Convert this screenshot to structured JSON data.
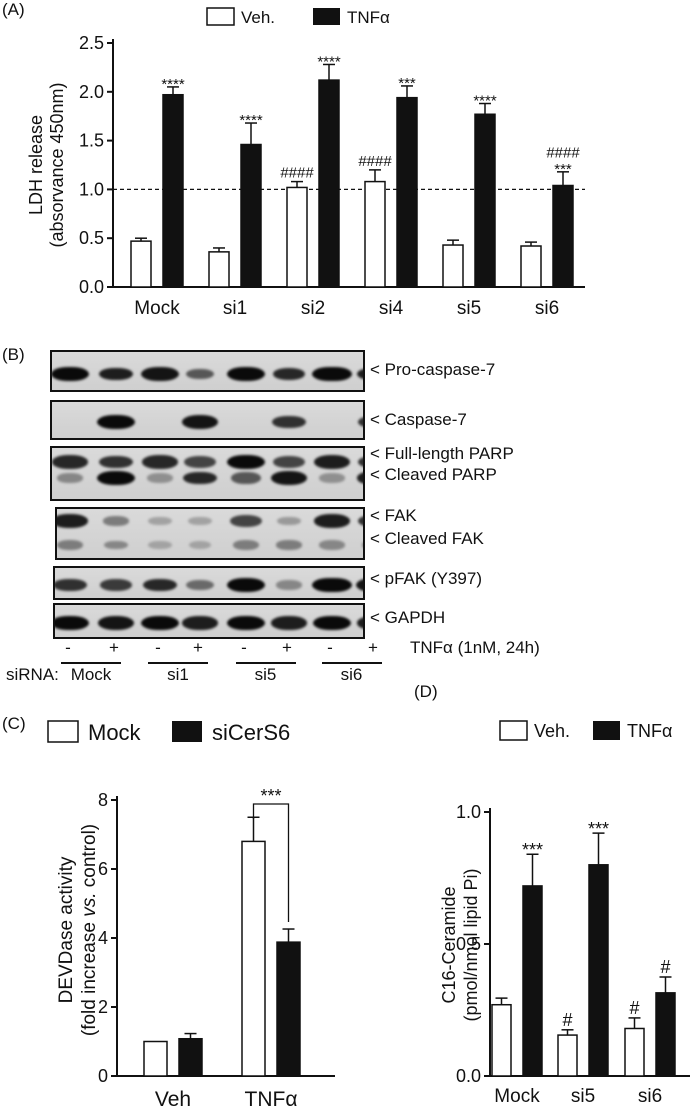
{
  "panel_a": {
    "letter": "(A)",
    "legend": [
      "Veh.",
      "TNFα"
    ],
    "ylabel_lines": [
      "LDH release",
      "(absorvance 450nm)"
    ],
    "threshold_line": 1.0
  },
  "panel_b": {
    "letter": "(B)",
    "band_labels": [
      "< Pro-caspase-7",
      "< Caspase-7",
      "< Full-length PARP",
      "< Cleaved PARP",
      "< FAK",
      "< Cleaved FAK",
      "< pFAK (Y397)",
      "< GAPDH"
    ],
    "treatment_signs": [
      "-",
      "+",
      "-",
      "+",
      "-",
      "+",
      "-",
      "+"
    ],
    "treatment_label": "TNFα (1nM, 24h)",
    "sirna_prefix": "siRNA:",
    "sirna_groups": [
      "Mock",
      "si1",
      "si5",
      "si6"
    ]
  },
  "panel_c": {
    "letter": "(C)",
    "legend": [
      "Mock",
      "siCerS6"
    ],
    "ylabel_lines": [
      "DEVDase activity",
      "(fold increase vs. control)"
    ]
  },
  "panel_d": {
    "letter": "(D)",
    "legend": [
      "Veh.",
      "TNFα"
    ],
    "ylabel_lines": [
      "C16-Ceramide",
      "(pmol/nmol lipid Pi)"
    ]
  },
  "chart_data": [
    {
      "type": "bar",
      "categories": [
        "Mock",
        "si1",
        "si2",
        "si4",
        "si5",
        "si6"
      ],
      "series": [
        {
          "name": "Veh.",
          "values": [
            0.47,
            0.36,
            1.02,
            1.08,
            0.43,
            0.42
          ],
          "errors": [
            0.03,
            0.04,
            0.06,
            0.12,
            0.05,
            0.04
          ],
          "annotations": [
            "",
            "",
            "####",
            "####",
            "",
            ""
          ]
        },
        {
          "name": "TNFα",
          "values": [
            1.97,
            1.46,
            2.12,
            1.94,
            1.77,
            1.04
          ],
          "errors": [
            0.08,
            0.22,
            0.16,
            0.12,
            0.11,
            0.14
          ],
          "annotations": [
            "****",
            "****",
            "****",
            "***",
            "****",
            "***"
          ],
          "annotations2": [
            "",
            "",
            "",
            "",
            "",
            "####"
          ]
        }
      ],
      "title": "",
      "xlabel": "",
      "ylabel": "LDH release (absorvance 450nm)",
      "ylim": [
        0,
        2.5
      ],
      "yticks": [
        "0.0",
        "0.5",
        "1.0",
        "1.5",
        "2.0",
        "2.5"
      ],
      "ytick_values": [
        0,
        0.5,
        1.0,
        1.5,
        2.0,
        2.5
      ],
      "reference_line": 1.0,
      "legend": "top"
    },
    {
      "type": "bar",
      "categories": [
        "Veh",
        "TNFα"
      ],
      "series": [
        {
          "name": "Mock",
          "values": [
            1.0,
            6.8
          ],
          "errors": [
            0,
            0.7
          ]
        },
        {
          "name": "siCerS6",
          "values": [
            1.08,
            3.88
          ],
          "errors": [
            0.15,
            0.38
          ]
        }
      ],
      "significance": {
        "category": "TNFα",
        "label": "***"
      },
      "title": "",
      "xlabel": "",
      "ylabel": "DEVDase activity (fold increase vs. control)",
      "ylim": [
        0,
        8
      ],
      "yticks": [
        "0",
        "2",
        "4",
        "6",
        "8"
      ],
      "ytick_values": [
        0,
        2,
        4,
        6,
        8
      ],
      "legend": "top"
    },
    {
      "type": "bar",
      "categories": [
        "Mock",
        "si5",
        "si6"
      ],
      "series": [
        {
          "name": "Veh.",
          "values": [
            0.27,
            0.155,
            0.18
          ],
          "errors": [
            0.025,
            0.02,
            0.04
          ],
          "annotations": [
            "",
            "#",
            "#"
          ]
        },
        {
          "name": "TNFα",
          "values": [
            0.72,
            0.8,
            0.315
          ],
          "errors": [
            0.12,
            0.12,
            0.06
          ],
          "annotations": [
            "***",
            "***",
            "#"
          ]
        }
      ],
      "title": "",
      "xlabel": "",
      "ylabel": "C16-Ceramide (pmol/nmol lipid Pi)",
      "ylim": [
        0,
        1.0
      ],
      "yticks": [
        "0.0",
        "0.5",
        "1.0"
      ],
      "ytick_values": [
        0,
        0.5,
        1.0
      ],
      "legend": "top"
    }
  ]
}
